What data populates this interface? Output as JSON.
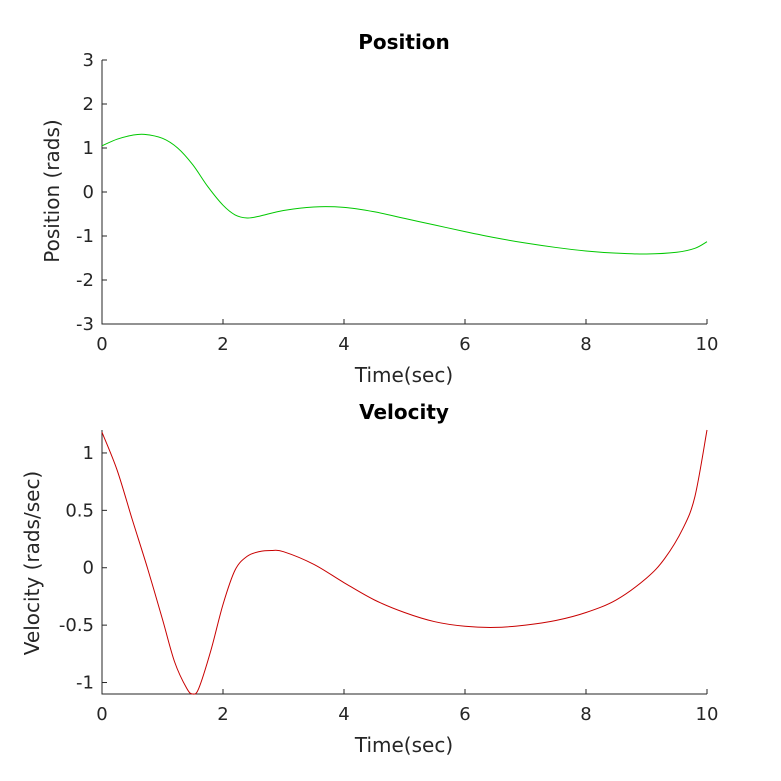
{
  "chart_data": [
    {
      "type": "line",
      "title": "Position",
      "xlabel": "Time(sec)",
      "ylabel": "Position (rads)",
      "xlim": [
        0,
        10
      ],
      "ylim": [
        -3,
        3
      ],
      "xticks": [
        0,
        2,
        4,
        6,
        8,
        10
      ],
      "yticks": [
        3,
        2,
        1,
        0,
        -1,
        -2,
        -3
      ],
      "grid": false,
      "line_color": "#00c800",
      "x": [
        0,
        0.25,
        0.5,
        0.7,
        1.0,
        1.25,
        1.5,
        1.75,
        2.0,
        2.2,
        2.4,
        2.6,
        3.0,
        3.5,
        4.0,
        4.5,
        5.0,
        5.5,
        6.0,
        6.5,
        7.0,
        7.5,
        8.0,
        8.5,
        9.0,
        9.5,
        9.8,
        10.0
      ],
      "y": [
        1.05,
        1.2,
        1.29,
        1.31,
        1.22,
        1.0,
        0.62,
        0.12,
        -0.3,
        -0.52,
        -0.59,
        -0.55,
        -0.42,
        -0.34,
        -0.35,
        -0.45,
        -0.6,
        -0.75,
        -0.9,
        -1.04,
        -1.16,
        -1.26,
        -1.34,
        -1.39,
        -1.41,
        -1.37,
        -1.28,
        -1.13
      ]
    },
    {
      "type": "line",
      "title": "Velocity",
      "xlabel": "Time(sec)",
      "ylabel": "Velocity (rads/sec)",
      "xlim": [
        0,
        10
      ],
      "ylim": [
        -1.1,
        1.2
      ],
      "xticks": [
        0,
        2,
        4,
        6,
        8,
        10
      ],
      "yticks": [
        1,
        0.5,
        0,
        -0.5,
        -1
      ],
      "grid": false,
      "line_color": "#c80000",
      "x": [
        0,
        0.25,
        0.5,
        0.75,
        1.0,
        1.2,
        1.4,
        1.5,
        1.6,
        1.8,
        2.0,
        2.2,
        2.4,
        2.6,
        2.8,
        3.0,
        3.5,
        4.0,
        4.5,
        5.0,
        5.5,
        6.0,
        6.5,
        7.0,
        7.5,
        8.0,
        8.5,
        9.0,
        9.3,
        9.6,
        9.8,
        10.0
      ],
      "y": [
        1.18,
        0.85,
        0.42,
        0.0,
        -0.45,
        -0.82,
        -1.05,
        -1.1,
        -1.05,
        -0.72,
        -0.32,
        -0.02,
        0.1,
        0.14,
        0.15,
        0.14,
        0.03,
        -0.13,
        -0.28,
        -0.39,
        -0.47,
        -0.51,
        -0.52,
        -0.5,
        -0.46,
        -0.39,
        -0.28,
        -0.09,
        0.08,
        0.34,
        0.62,
        1.2
      ]
    }
  ]
}
